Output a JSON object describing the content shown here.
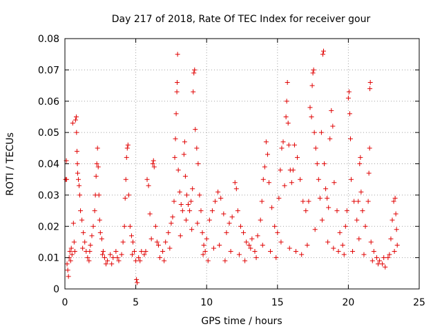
{
  "chart_data": {
    "type": "scatter",
    "title": "Day 217 of 2018, Rate Of TEC Index for receiver gour",
    "xlabel": "GPS time / hours",
    "ylabel": "ROTI / TECUs",
    "xlim": [
      0,
      25
    ],
    "ylim": [
      0,
      0.08
    ],
    "xticks": [
      "0",
      "5",
      "10",
      "15",
      "20",
      "25"
    ],
    "yticks": [
      "0",
      "0.01",
      "0.02",
      "0.03",
      "0.04",
      "0.05",
      "0.06",
      "0.07",
      "0.08"
    ],
    "grid": true,
    "marker": "plus",
    "color": "#e00000",
    "series": [
      {
        "points": [
          [
            0.05,
            0.035
          ],
          [
            0.1,
            0.041
          ],
          [
            0.12,
            0.035
          ],
          [
            0.15,
            0.008
          ],
          [
            0.2,
            0.006
          ],
          [
            0.25,
            0.004
          ],
          [
            0.3,
            0.01
          ],
          [
            0.35,
            0.012
          ],
          [
            0.4,
            0.009
          ],
          [
            0.45,
            0.013
          ],
          [
            0.55,
            0.053
          ],
          [
            0.6,
            0.021
          ],
          [
            0.65,
            0.015
          ],
          [
            0.7,
            0.012
          ],
          [
            0.75,
            0.054
          ],
          [
            0.8,
            0.055
          ],
          [
            0.82,
            0.05
          ],
          [
            0.85,
            0.044
          ],
          [
            0.88,
            0.04
          ],
          [
            0.9,
            0.037
          ],
          [
            0.95,
            0.035
          ],
          [
            1.0,
            0.033
          ],
          [
            1.05,
            0.03
          ],
          [
            1.1,
            0.025
          ],
          [
            1.2,
            0.022
          ],
          [
            1.3,
            0.018
          ],
          [
            1.4,
            0.015
          ],
          [
            1.5,
            0.012
          ],
          [
            1.6,
            0.01
          ],
          [
            1.7,
            0.009
          ],
          [
            1.8,
            0.014
          ],
          [
            1.9,
            0.017
          ],
          [
            2.0,
            0.02
          ],
          [
            2.1,
            0.025
          ],
          [
            2.15,
            0.03
          ],
          [
            2.2,
            0.036
          ],
          [
            2.25,
            0.04
          ],
          [
            2.3,
            0.045
          ],
          [
            2.35,
            0.039
          ],
          [
            2.4,
            0.03
          ],
          [
            2.45,
            0.022
          ],
          [
            2.5,
            0.018
          ],
          [
            2.6,
            0.016
          ],
          [
            2.7,
            0.012
          ],
          [
            2.8,
            0.01
          ],
          [
            2.9,
            0.008
          ],
          [
            3.0,
            0.009
          ],
          [
            3.2,
            0.011
          ],
          [
            3.4,
            0.01
          ],
          [
            3.6,
            0.012
          ],
          [
            3.8,
            0.009
          ],
          [
            4.0,
            0.011
          ],
          [
            4.1,
            0.015
          ],
          [
            4.2,
            0.02
          ],
          [
            4.25,
            0.029
          ],
          [
            4.3,
            0.035
          ],
          [
            4.35,
            0.042
          ],
          [
            4.4,
            0.045
          ],
          [
            4.45,
            0.046
          ],
          [
            4.5,
            0.03
          ],
          [
            4.6,
            0.02
          ],
          [
            4.7,
            0.017
          ],
          [
            4.8,
            0.015
          ],
          [
            4.9,
            0.012
          ],
          [
            5.0,
            0.009
          ],
          [
            5.05,
            0.003
          ],
          [
            5.1,
            0.002
          ],
          [
            5.2,
            0.01
          ],
          [
            5.4,
            0.012
          ],
          [
            5.6,
            0.011
          ],
          [
            5.8,
            0.035
          ],
          [
            5.9,
            0.033
          ],
          [
            6.0,
            0.024
          ],
          [
            6.1,
            0.016
          ],
          [
            6.2,
            0.04
          ],
          [
            6.25,
            0.041
          ],
          [
            6.3,
            0.039
          ],
          [
            6.4,
            0.02
          ],
          [
            6.5,
            0.015
          ],
          [
            6.7,
            0.01
          ],
          [
            6.9,
            0.012
          ],
          [
            7.1,
            0.015
          ],
          [
            7.3,
            0.018
          ],
          [
            7.5,
            0.021
          ],
          [
            7.6,
            0.023
          ],
          [
            7.7,
            0.028
          ],
          [
            7.75,
            0.042
          ],
          [
            7.8,
            0.048
          ],
          [
            7.85,
            0.056
          ],
          [
            7.9,
            0.063
          ],
          [
            7.92,
            0.066
          ],
          [
            7.95,
            0.075
          ],
          [
            8.0,
            0.038
          ],
          [
            8.1,
            0.031
          ],
          [
            8.2,
            0.027
          ],
          [
            8.3,
            0.025
          ],
          [
            8.4,
            0.043
          ],
          [
            8.45,
            0.047
          ],
          [
            8.5,
            0.036
          ],
          [
            8.6,
            0.03
          ],
          [
            8.7,
            0.027
          ],
          [
            8.8,
            0.025
          ],
          [
            8.9,
            0.028
          ],
          [
            9.0,
            0.032
          ],
          [
            9.05,
            0.063
          ],
          [
            9.1,
            0.069
          ],
          [
            9.15,
            0.07
          ],
          [
            9.2,
            0.051
          ],
          [
            9.3,
            0.045
          ],
          [
            9.4,
            0.04
          ],
          [
            9.5,
            0.03
          ],
          [
            9.6,
            0.025
          ],
          [
            9.7,
            0.018
          ],
          [
            9.8,
            0.014
          ],
          [
            9.9,
            0.012
          ],
          [
            10.0,
            0.016
          ],
          [
            10.2,
            0.022
          ],
          [
            10.4,
            0.025
          ],
          [
            10.6,
            0.028
          ],
          [
            10.8,
            0.031
          ],
          [
            11.0,
            0.029
          ],
          [
            11.2,
            0.024
          ],
          [
            11.4,
            0.018
          ],
          [
            11.6,
            0.021
          ],
          [
            11.8,
            0.023
          ],
          [
            12.0,
            0.034
          ],
          [
            12.1,
            0.032
          ],
          [
            12.2,
            0.025
          ],
          [
            12.4,
            0.02
          ],
          [
            12.6,
            0.018
          ],
          [
            12.8,
            0.015
          ],
          [
            13.0,
            0.014
          ],
          [
            13.2,
            0.016
          ],
          [
            13.4,
            0.012
          ],
          [
            13.6,
            0.017
          ],
          [
            13.8,
            0.022
          ],
          [
            13.9,
            0.028
          ],
          [
            14.0,
            0.035
          ],
          [
            14.1,
            0.039
          ],
          [
            14.2,
            0.047
          ],
          [
            14.3,
            0.043
          ],
          [
            14.4,
            0.034
          ],
          [
            14.6,
            0.026
          ],
          [
            14.8,
            0.02
          ],
          [
            15.0,
            0.018
          ],
          [
            15.1,
            0.029
          ],
          [
            15.2,
            0.038
          ],
          [
            15.3,
            0.045
          ],
          [
            15.4,
            0.047
          ],
          [
            15.5,
            0.033
          ],
          [
            15.6,
            0.055
          ],
          [
            15.65,
            0.06
          ],
          [
            15.7,
            0.066
          ],
          [
            15.75,
            0.053
          ],
          [
            15.8,
            0.046
          ],
          [
            15.9,
            0.038
          ],
          [
            16.0,
            0.034
          ],
          [
            16.1,
            0.038
          ],
          [
            16.2,
            0.046
          ],
          [
            16.4,
            0.042
          ],
          [
            16.6,
            0.035
          ],
          [
            16.8,
            0.028
          ],
          [
            17.0,
            0.025
          ],
          [
            17.2,
            0.028
          ],
          [
            17.3,
            0.058
          ],
          [
            17.4,
            0.055
          ],
          [
            17.45,
            0.065
          ],
          [
            17.5,
            0.069
          ],
          [
            17.55,
            0.07
          ],
          [
            17.6,
            0.05
          ],
          [
            17.7,
            0.045
          ],
          [
            17.8,
            0.04
          ],
          [
            17.9,
            0.035
          ],
          [
            18.0,
            0.029
          ],
          [
            18.1,
            0.05
          ],
          [
            18.2,
            0.075
          ],
          [
            18.25,
            0.076
          ],
          [
            18.3,
            0.04
          ],
          [
            18.4,
            0.032
          ],
          [
            18.5,
            0.029
          ],
          [
            18.6,
            0.026
          ],
          [
            18.7,
            0.048
          ],
          [
            18.8,
            0.057
          ],
          [
            18.9,
            0.052
          ],
          [
            19.0,
            0.034
          ],
          [
            19.2,
            0.025
          ],
          [
            19.4,
            0.018
          ],
          [
            19.6,
            0.014
          ],
          [
            19.8,
            0.02
          ],
          [
            19.9,
            0.025
          ],
          [
            20.0,
            0.061
          ],
          [
            20.05,
            0.063
          ],
          [
            20.1,
            0.056
          ],
          [
            20.15,
            0.048
          ],
          [
            20.2,
            0.035
          ],
          [
            20.4,
            0.028
          ],
          [
            20.6,
            0.022
          ],
          [
            20.7,
            0.028
          ],
          [
            20.8,
            0.04
          ],
          [
            20.85,
            0.042
          ],
          [
            20.9,
            0.031
          ],
          [
            21.0,
            0.025
          ],
          [
            21.2,
            0.02
          ],
          [
            21.4,
            0.028
          ],
          [
            21.45,
            0.037
          ],
          [
            21.5,
            0.045
          ],
          [
            21.52,
            0.064
          ],
          [
            21.55,
            0.066
          ],
          [
            21.6,
            0.015
          ],
          [
            21.8,
            0.012
          ],
          [
            22.0,
            0.01
          ],
          [
            22.2,
            0.009
          ],
          [
            22.4,
            0.008
          ],
          [
            22.6,
            0.007
          ],
          [
            22.8,
            0.01
          ],
          [
            23.0,
            0.016
          ],
          [
            23.1,
            0.022
          ],
          [
            23.2,
            0.028
          ],
          [
            23.3,
            0.029
          ],
          [
            23.35,
            0.024
          ],
          [
            23.4,
            0.019
          ],
          [
            23.45,
            0.014
          ],
          [
            0.5,
            0.011
          ],
          [
            1.25,
            0.013
          ],
          [
            1.75,
            0.012
          ],
          [
            2.65,
            0.011
          ],
          [
            3.3,
            0.008
          ],
          [
            3.7,
            0.01
          ],
          [
            4.75,
            0.011
          ],
          [
            5.3,
            0.009
          ],
          [
            5.7,
            0.012
          ],
          [
            6.6,
            0.014
          ],
          [
            7.0,
            0.009
          ],
          [
            7.4,
            0.013
          ],
          [
            8.15,
            0.017
          ],
          [
            8.55,
            0.022
          ],
          [
            8.95,
            0.019
          ],
          [
            9.35,
            0.021
          ],
          [
            9.75,
            0.011
          ],
          [
            10.1,
            0.009
          ],
          [
            10.5,
            0.013
          ],
          [
            10.9,
            0.014
          ],
          [
            11.3,
            0.009
          ],
          [
            11.7,
            0.012
          ],
          [
            12.3,
            0.011
          ],
          [
            12.7,
            0.009
          ],
          [
            13.1,
            0.013
          ],
          [
            13.5,
            0.01
          ],
          [
            13.95,
            0.014
          ],
          [
            14.5,
            0.012
          ],
          [
            14.9,
            0.01
          ],
          [
            15.25,
            0.015
          ],
          [
            15.85,
            0.013
          ],
          [
            16.3,
            0.012
          ],
          [
            16.7,
            0.011
          ],
          [
            17.1,
            0.014
          ],
          [
            17.65,
            0.019
          ],
          [
            18.15,
            0.022
          ],
          [
            18.55,
            0.015
          ],
          [
            18.95,
            0.013
          ],
          [
            19.3,
            0.012
          ],
          [
            19.7,
            0.011
          ],
          [
            20.3,
            0.012
          ],
          [
            20.75,
            0.016
          ],
          [
            21.1,
            0.011
          ],
          [
            21.7,
            0.009
          ],
          [
            22.1,
            0.008
          ],
          [
            22.5,
            0.01
          ],
          [
            22.9,
            0.011
          ],
          [
            23.25,
            0.012
          ]
        ]
      }
    ]
  }
}
